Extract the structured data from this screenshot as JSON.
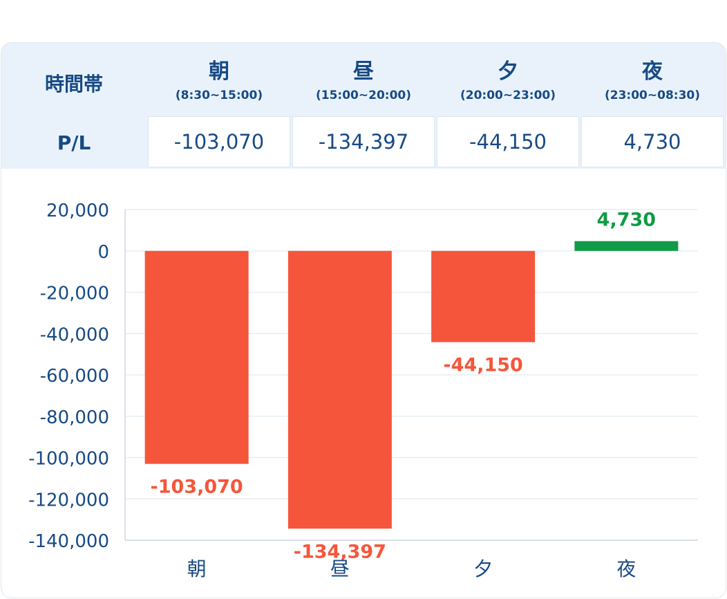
{
  "table": {
    "header_label": "時間帯",
    "row_label": "P/L",
    "columns": [
      {
        "name": "朝",
        "range": "(8:30~15:00)",
        "pl": "-103,070"
      },
      {
        "name": "昼",
        "range": "(15:00~20:00)",
        "pl": "-134,397"
      },
      {
        "name": "夕",
        "range": "(20:00~23:00)",
        "pl": "-44,150"
      },
      {
        "name": "夜",
        "range": "(23:00~08:30)",
        "pl": "4,730"
      }
    ]
  },
  "chart_data": {
    "type": "bar",
    "categories": [
      "朝",
      "昼",
      "夕",
      "夜"
    ],
    "values": [
      -103070,
      -134397,
      -44150,
      4730
    ],
    "data_labels": [
      "-103,070",
      "-134,397",
      "-44,150",
      "4,730"
    ],
    "ylim": [
      -140000,
      20000
    ],
    "yticks": [
      20000,
      0,
      -20000,
      -40000,
      -60000,
      -80000,
      -100000,
      -120000,
      -140000
    ],
    "ytick_labels": [
      "20,000",
      "0",
      "-20,000",
      "-40,000",
      "-60,000",
      "-80,000",
      "-100,000",
      "-120,000",
      "-140,000"
    ],
    "grid": true,
    "colors": {
      "negative": "#f5563b",
      "positive": "#119a47"
    }
  }
}
